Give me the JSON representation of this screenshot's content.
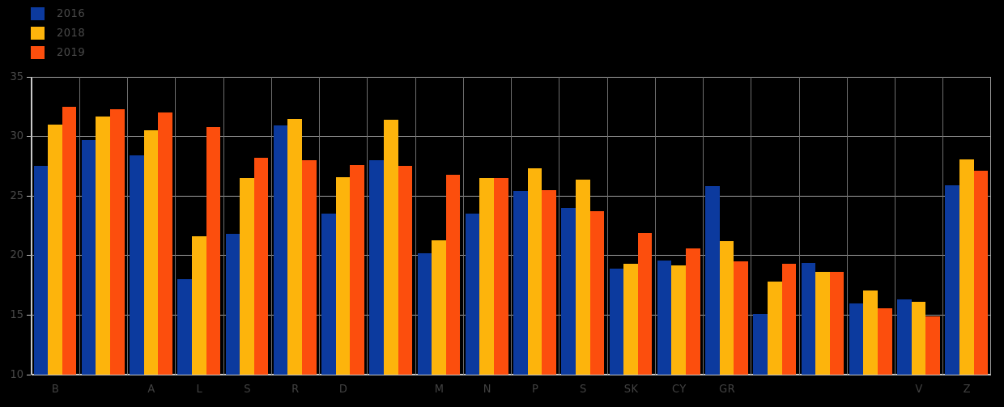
{
  "chart_data": {
    "type": "bar",
    "title": "",
    "xlabel": "",
    "ylabel": "",
    "categories": [
      "B",
      "",
      "A",
      "L",
      "S",
      "R",
      "D",
      "",
      "M",
      "N",
      "P",
      "S",
      "SK",
      "CY",
      "GR",
      "",
      "",
      "",
      "V",
      "Z"
    ],
    "series": [
      {
        "name": "2016",
        "color": "#0c3a9e",
        "values": [
          27.5,
          29.7,
          28.4,
          18.0,
          21.8,
          30.9,
          23.5,
          28.0,
          20.2,
          23.5,
          25.4,
          24.0,
          18.9,
          19.6,
          25.8,
          15.1,
          19.4,
          16.0,
          16.3,
          25.9
        ]
      },
      {
        "name": "2018",
        "color": "#fdb40c",
        "values": [
          31.0,
          31.7,
          30.5,
          21.6,
          26.5,
          31.5,
          26.6,
          31.4,
          21.3,
          26.5,
          27.3,
          26.4,
          19.3,
          19.2,
          21.2,
          17.8,
          18.6,
          17.1,
          16.1,
          28.1
        ]
      },
      {
        "name": "2019",
        "color": "#fc4e0d",
        "values": [
          32.5,
          32.3,
          32.0,
          30.8,
          28.2,
          28.0,
          27.6,
          27.5,
          26.8,
          26.5,
          25.5,
          23.7,
          21.9,
          20.6,
          19.5,
          19.3,
          18.6,
          15.6,
          14.9,
          27.1
        ]
      }
    ],
    "ylim": [
      10,
      35
    ],
    "yticks": [
      10,
      15,
      20,
      25,
      30,
      35
    ],
    "grid": true,
    "legend_position": "top-left",
    "colors": {
      "background": "#000000",
      "hgrid": "#9e9e9e",
      "vgrid": "#6e6e6e",
      "axis": "#c9c9c9",
      "faint_text": "#4a4a4a"
    }
  }
}
